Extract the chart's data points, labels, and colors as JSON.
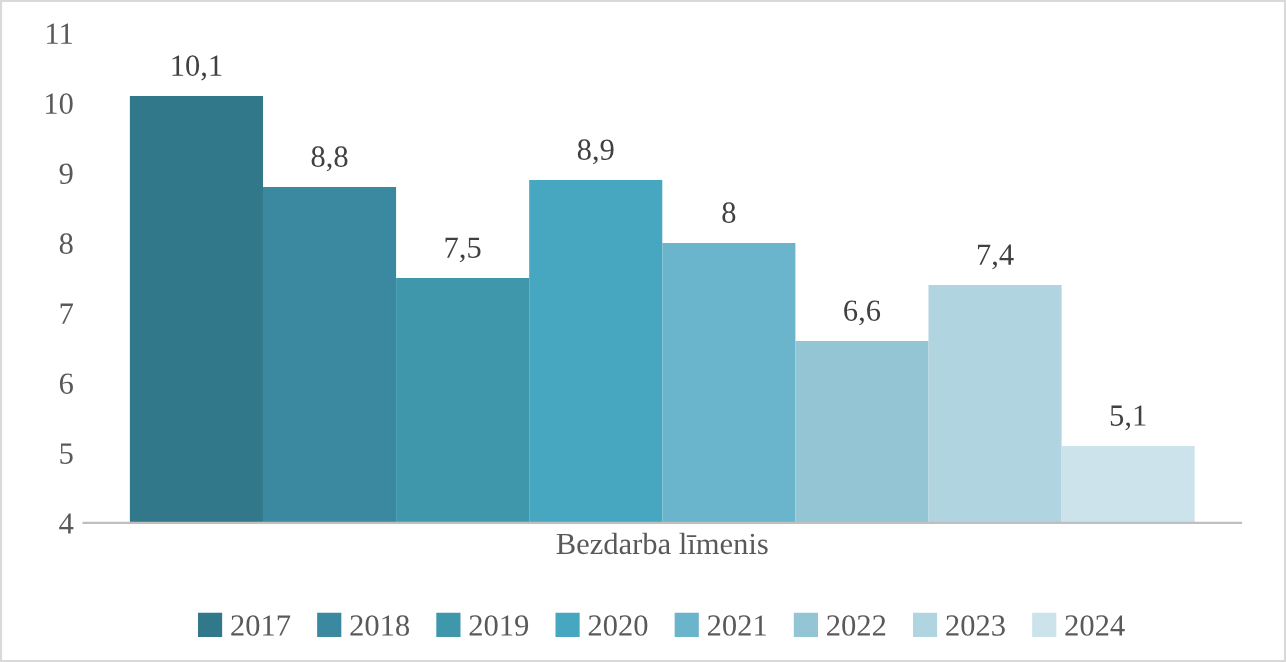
{
  "chart_data": {
    "type": "bar",
    "categories": [
      "Bezdarba līmenis"
    ],
    "series": [
      {
        "name": "2017",
        "color": "#31788a",
        "values": [
          10.1
        ],
        "value_labels": [
          "10,1"
        ]
      },
      {
        "name": "2018",
        "color": "#3a89a0",
        "values": [
          8.8
        ],
        "value_labels": [
          "8,8"
        ]
      },
      {
        "name": "2019",
        "color": "#3f97ab",
        "values": [
          7.5
        ],
        "value_labels": [
          "7,5"
        ]
      },
      {
        "name": "2020",
        "color": "#47a7c0",
        "values": [
          8.9
        ],
        "value_labels": [
          "8,9"
        ]
      },
      {
        "name": "2021",
        "color": "#6ab5cb",
        "values": [
          8
        ],
        "value_labels": [
          "8"
        ]
      },
      {
        "name": "2022",
        "color": "#93c5d5",
        "values": [
          6.6
        ],
        "value_labels": [
          "6,6"
        ]
      },
      {
        "name": "2023",
        "color": "#b0d4e0",
        "values": [
          7.4
        ],
        "value_labels": [
          "7,4"
        ]
      },
      {
        "name": "2024",
        "color": "#cde3eb",
        "values": [
          5.1
        ],
        "value_labels": [
          "5,1"
        ]
      }
    ],
    "ylim": [
      4,
      11
    ],
    "yticks": [
      4,
      5,
      6,
      7,
      8,
      9,
      10,
      11
    ],
    "grid": false,
    "legend": "bottom"
  }
}
